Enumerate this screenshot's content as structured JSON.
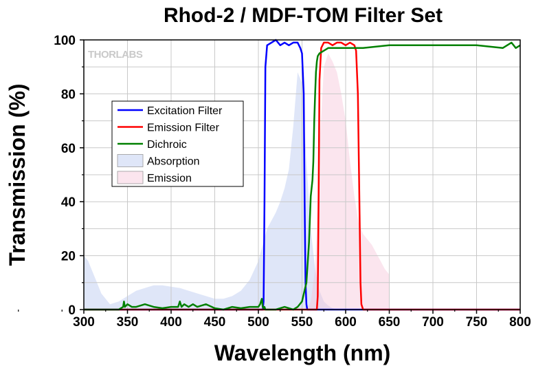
{
  "chart_data": {
    "type": "line",
    "title": "Rhod-2 / MDF-TOM Filter Set",
    "xlabel": "Wavelength (nm)",
    "ylabel": "Transmission (%)",
    "xlim": [
      300,
      800
    ],
    "ylim": [
      0,
      100
    ],
    "xticks": [
      300,
      350,
      400,
      450,
      500,
      550,
      600,
      650,
      700,
      750,
      800
    ],
    "yticks": [
      0,
      20,
      40,
      60,
      80,
      100
    ],
    "grid": true,
    "watermark": "THORLABS",
    "legend_position": "upper-left",
    "series": [
      {
        "name": "Excitation Filter",
        "kind": "line",
        "color": "#0000ff",
        "x": [
          300,
          505,
          506,
          507,
          508,
          510,
          515,
          520,
          525,
          530,
          535,
          540,
          545,
          548,
          550,
          552,
          553,
          554,
          555,
          556,
          800
        ],
        "y": [
          0,
          0,
          3,
          40,
          90,
          98,
          99,
          100,
          98,
          99,
          98,
          99,
          99,
          97,
          95,
          80,
          40,
          10,
          2,
          0,
          0
        ]
      },
      {
        "name": "Emission Filter",
        "kind": "line",
        "color": "#ff0000",
        "x": [
          300,
          567,
          568,
          569,
          570,
          572,
          575,
          580,
          585,
          590,
          595,
          600,
          605,
          610,
          612,
          614,
          616,
          617,
          618,
          620,
          800
        ],
        "y": [
          0,
          0,
          5,
          40,
          85,
          97,
          99,
          99,
          98,
          99,
          99,
          98,
          99,
          98,
          96,
          80,
          35,
          10,
          2,
          0,
          0
        ]
      },
      {
        "name": "Dichroic",
        "kind": "line",
        "color": "#008000",
        "x": [
          300,
          340,
          345,
          346,
          347,
          350,
          355,
          360,
          370,
          380,
          390,
          400,
          408,
          410,
          412,
          415,
          420,
          425,
          430,
          435,
          440,
          450,
          460,
          470,
          480,
          490,
          500,
          502,
          504,
          505,
          506,
          507,
          508,
          510,
          520,
          530,
          540,
          545,
          550,
          555,
          558,
          560,
          562,
          563,
          564,
          565,
          566,
          567,
          568,
          570,
          575,
          580,
          600,
          620,
          650,
          700,
          750,
          780,
          790,
          795,
          800
        ],
        "y": [
          0,
          0,
          1,
          3,
          1,
          2,
          1,
          1,
          2,
          1,
          0.5,
          1,
          1,
          3,
          1,
          2,
          1,
          2,
          1,
          1.5,
          2,
          0.5,
          0,
          1,
          0.5,
          1,
          1,
          2,
          4,
          1,
          0.5,
          1,
          0,
          0,
          0,
          1,
          0,
          1,
          3,
          10,
          25,
          42,
          48,
          55,
          70,
          80,
          88,
          92,
          94,
          95,
          96,
          97,
          97,
          97,
          98,
          98,
          98,
          97,
          99,
          97,
          98
        ]
      },
      {
        "name": "Absorption",
        "kind": "area",
        "color": "#b8c8f0",
        "x": [
          300,
          305,
          310,
          315,
          320,
          330,
          340,
          350,
          360,
          370,
          380,
          390,
          400,
          410,
          420,
          430,
          440,
          450,
          460,
          470,
          480,
          490,
          500,
          505,
          510,
          515,
          520,
          525,
          530,
          535,
          540,
          545,
          550,
          555,
          560,
          565,
          570,
          575,
          580,
          585,
          590
        ],
        "y": [
          20,
          18,
          14,
          10,
          6,
          2,
          3,
          5,
          7,
          8,
          9,
          9,
          8.5,
          8,
          7,
          6,
          5,
          4,
          4,
          5,
          7,
          11,
          18,
          24,
          30,
          33,
          36,
          40,
          45,
          52,
          68,
          88,
          84,
          55,
          30,
          15,
          7,
          3,
          1.5,
          0.5,
          0
        ]
      },
      {
        "name": "Emission",
        "kind": "area",
        "color": "#f7c6d9",
        "x": [
          555,
          560,
          565,
          570,
          575,
          580,
          585,
          590,
          595,
          600,
          605,
          610,
          615,
          620,
          625,
          630,
          635,
          640,
          645,
          650
        ],
        "y": [
          0,
          3,
          15,
          60,
          90,
          95,
          92,
          88,
          80,
          70,
          55,
          42,
          32,
          28,
          26,
          24,
          21,
          18,
          15,
          13
        ]
      }
    ]
  }
}
